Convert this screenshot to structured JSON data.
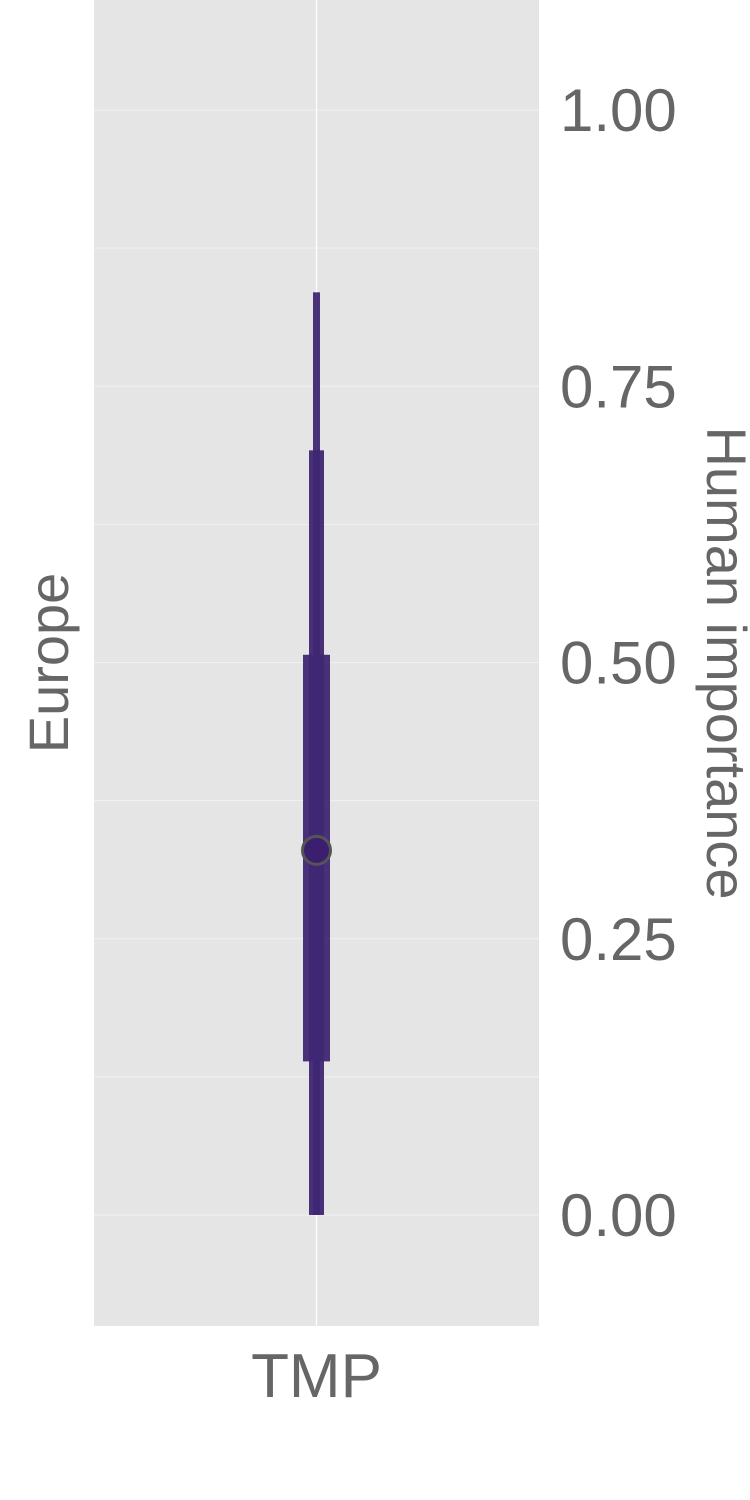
{
  "chart_data": {
    "type": "interval",
    "facet_label": "Europe",
    "ylabel": "Human importance",
    "xlabel": "",
    "categories": [
      "TMP"
    ],
    "ylim": [
      -0.1,
      1.1
    ],
    "yticks": [
      0.0,
      0.25,
      0.5,
      0.75,
      1.0
    ],
    "ytick_labels": [
      "0.00",
      "0.25",
      "0.50",
      "0.75",
      "1.00"
    ],
    "grid": true,
    "y_axis_side": "right",
    "series": [
      {
        "category": "TMP",
        "point": 0.33,
        "thin_interval": [
          0.0,
          0.835
        ],
        "medium_interval": [
          0.0,
          0.692
        ],
        "thick_interval": [
          0.139,
          0.507
        ]
      }
    ],
    "colors": {
      "interval": "#3f2773",
      "point_fill": "#3b1f6e",
      "point_edge": "#555555",
      "panel_bg": "#e5e5e5",
      "grid": "#ffffff",
      "text": "#666666"
    }
  }
}
